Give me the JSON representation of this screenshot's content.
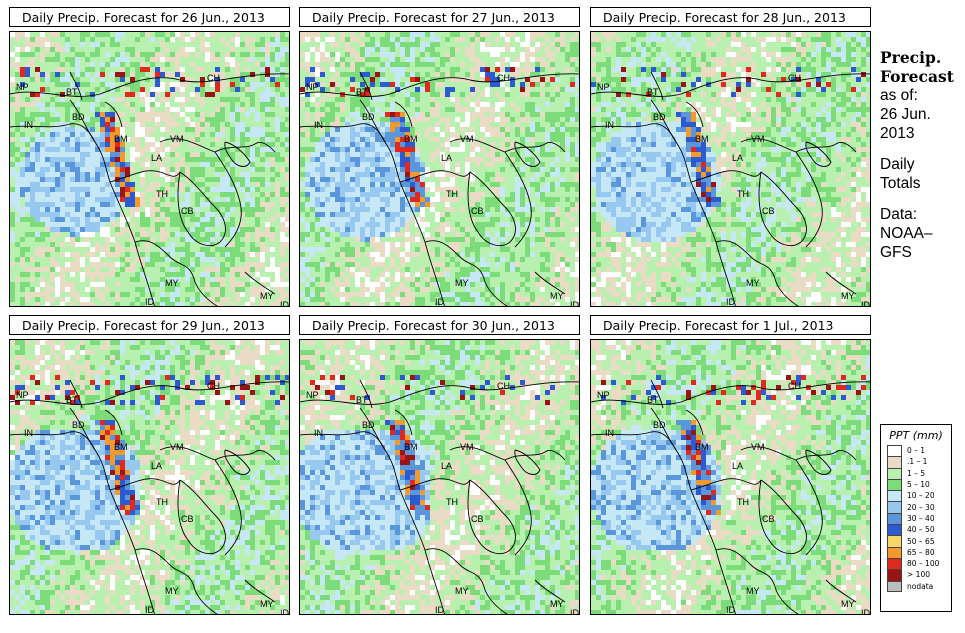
{
  "panels": [
    {
      "title": "Daily Precip. Forecast for  26 Jun., 2013",
      "date_key": "26-Jun-2013",
      "wetness": 0.34,
      "seed": 11
    },
    {
      "title": "Daily Precip. Forecast for  27 Jun., 2013",
      "date_key": "27-Jun-2013",
      "wetness": 0.42,
      "seed": 23
    },
    {
      "title": "Daily Precip. Forecast for  28 Jun., 2013",
      "date_key": "28-Jun-2013",
      "wetness": 0.46,
      "seed": 37
    },
    {
      "title": "Daily Precip. Forecast for  29 Jun., 2013",
      "date_key": "29-Jun-2013",
      "wetness": 0.55,
      "seed": 41
    },
    {
      "title": "Daily Precip. Forecast for  30 Jun., 2013",
      "date_key": "30-Jun-2013",
      "wetness": 0.62,
      "seed": 53
    },
    {
      "title": "Daily Precip. Forecast for  1 Jul., 2013",
      "date_key": "1-Jul-2013",
      "wetness": 0.52,
      "seed": 67
    }
  ],
  "region_labels": [
    "NP",
    "BT",
    "IN",
    "BD",
    "BM",
    "CH",
    "VM",
    "LA",
    "TH",
    "CB",
    "MY",
    "ID",
    "MY",
    "ID"
  ],
  "side_panel": {
    "heading_line1": "Precip.",
    "heading_line2": "Forecast",
    "asof_line1": "as of:",
    "asof_line2": "26 Jun.",
    "asof_line3": "2013",
    "totals_line1": "Daily",
    "totals_line2": "Totals",
    "source_line1": "Data:",
    "source_line2": "NOAA–",
    "source_line3": "GFS"
  },
  "legend": {
    "title": "PPT (mm)",
    "classes": [
      {
        "label": "0 – 1",
        "color": "#ffffff"
      },
      {
        "label": ".1 – 1",
        "color": "#eadcc4"
      },
      {
        "label": "1 – 5",
        "color": "#b8f0b0"
      },
      {
        "label": "5 – 10",
        "color": "#7ddc7a"
      },
      {
        "label": "10 – 20",
        "color": "#c6e8f6"
      },
      {
        "label": "20 – 30",
        "color": "#96c8f0"
      },
      {
        "label": "30 – 40",
        "color": "#5a96dc"
      },
      {
        "label": "40 – 50",
        "color": "#2c5ad0"
      },
      {
        "label": "50 – 65",
        "color": "#f4d86a"
      },
      {
        "label": "65 – 80",
        "color": "#f49a2c"
      },
      {
        "label": "80 – 100",
        "color": "#e0281c"
      },
      {
        "label": "> 100",
        "color": "#9a1414"
      },
      {
        "label": "nodata",
        "color": "#bdbdbd"
      }
    ]
  }
}
